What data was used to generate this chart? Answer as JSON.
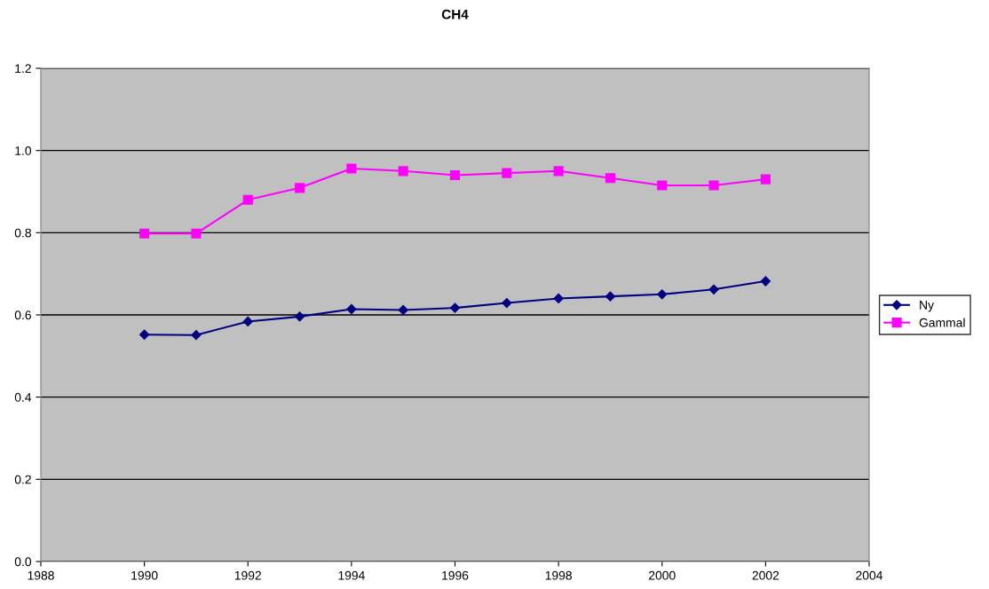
{
  "chart_data": {
    "type": "line",
    "title": "CH4",
    "x": [
      1990,
      1991,
      1992,
      1993,
      1994,
      1995,
      1996,
      1997,
      1998,
      1999,
      2000,
      2001,
      2002
    ],
    "series": [
      {
        "name": "Ny",
        "color": "#000080",
        "marker": "diamond",
        "values": [
          0.552,
          0.551,
          0.584,
          0.596,
          0.614,
          0.612,
          0.617,
          0.629,
          0.64,
          0.645,
          0.65,
          0.662,
          0.682
        ]
      },
      {
        "name": "Gammal",
        "color": "#ff00ff",
        "marker": "square",
        "values": [
          0.798,
          0.798,
          0.88,
          0.909,
          0.956,
          0.95,
          0.94,
          0.945,
          0.95,
          0.933,
          0.915,
          0.915,
          0.93
        ]
      }
    ],
    "xlim": [
      1988,
      2004
    ],
    "xticks": [
      1988,
      1990,
      1992,
      1994,
      1996,
      1998,
      2000,
      2002,
      2004
    ],
    "ylim": [
      0,
      1.2
    ],
    "yticks": [
      {
        "value": 0,
        "label": "0.0"
      },
      {
        "value": 0.2,
        "label": "0.2"
      },
      {
        "value": 0.4,
        "label": "0.4"
      },
      {
        "value": 0.6,
        "label": "0.6"
      },
      {
        "value": 0.8,
        "label": "0.8"
      },
      {
        "value": 1.0,
        "label": "1.0"
      },
      {
        "value": 1.2,
        "label": "1.2"
      }
    ],
    "grid": "y",
    "legend": "right",
    "line_style": "solid"
  }
}
